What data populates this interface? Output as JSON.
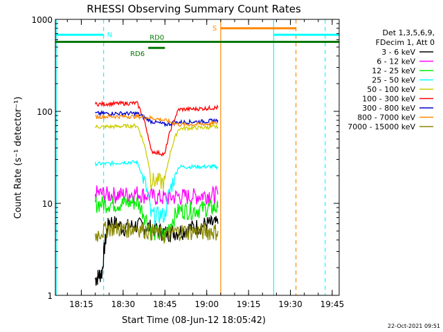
{
  "chart_data": {
    "type": "line",
    "title": "RHESSI Observing Summary Count Rates",
    "xlabel": "Start Time (08-Jun-12 18:05:42)",
    "ylabel": "Count Rate (s⁻¹ detector⁻¹)",
    "yscale": "log",
    "ylim": [
      1,
      1000
    ],
    "xlim": [
      "18:05:42",
      "19:47:30"
    ],
    "x_ticks": [
      "18:15",
      "18:30",
      "18:45",
      "19:00",
      "19:15",
      "19:30",
      "19:45"
    ],
    "y_ticks": [
      "1",
      "10",
      "100",
      "1000"
    ],
    "timestamp": "22-Oct-2021 09:51",
    "legend_header": [
      "Det 1,3,5,6,9,",
      "FDecim 1, Att 0"
    ],
    "legend_position": "right",
    "series": [
      {
        "name": "3 - 6 keV",
        "color": "#000000",
        "x": [
          "18:20:00",
          "18:22:30",
          "18:25:00",
          "18:30:00",
          "18:35:00",
          "18:40:00",
          "18:45:00",
          "18:50:00",
          "18:55:00",
          "19:00:00",
          "19:04:00"
        ],
        "values": [
          1.5,
          1.8,
          6.5,
          5.5,
          5.8,
          5.5,
          4.8,
          5.0,
          5.5,
          6.0,
          6.0
        ]
      },
      {
        "name": "6 - 12 keV",
        "color": "#ff00ff",
        "x": [
          "18:20:00",
          "18:25:00",
          "18:30:00",
          "18:35:00",
          "18:40:00",
          "18:45:00",
          "18:50:00",
          "18:55:00",
          "19:00:00",
          "19:04:00"
        ],
        "values": [
          13.0,
          12.5,
          12.5,
          13.0,
          12.0,
          11.5,
          12.0,
          12.0,
          12.5,
          12.5
        ]
      },
      {
        "name": "12 - 25 keV",
        "color": "#00ee00",
        "x": [
          "18:20:00",
          "18:25:00",
          "18:30:00",
          "18:35:00",
          "18:40:00",
          "18:45:00",
          "18:50:00",
          "18:55:00",
          "19:00:00",
          "19:04:00"
        ],
        "values": [
          10.0,
          10.0,
          10.0,
          10.5,
          5.0,
          4.5,
          8.5,
          8.5,
          9.0,
          9.0
        ]
      },
      {
        "name": "25 - 50 keV",
        "color": "#00ffff",
        "x": [
          "18:20:00",
          "18:25:00",
          "18:30:00",
          "18:35:00",
          "18:40:00",
          "18:45:00",
          "18:50:00",
          "18:55:00",
          "19:00:00",
          "19:04:00"
        ],
        "values": [
          27,
          27,
          28,
          28,
          7.5,
          7.5,
          25,
          25,
          25,
          25
        ]
      },
      {
        "name": "50 - 100 keV",
        "color": "#cccc00",
        "x": [
          "18:20:00",
          "18:25:00",
          "18:30:00",
          "18:35:00",
          "18:40:00",
          "18:45:00",
          "18:50:00",
          "18:55:00",
          "19:00:00",
          "19:04:00"
        ],
        "values": [
          68,
          68,
          69,
          70,
          18,
          17,
          65,
          66,
          67,
          68
        ]
      },
      {
        "name": "100 - 300 keV",
        "color": "#ff0000",
        "x": [
          "18:20:00",
          "18:25:00",
          "18:30:00",
          "18:35:00",
          "18:40:00",
          "18:45:00",
          "18:50:00",
          "18:55:00",
          "19:00:00",
          "19:04:00"
        ],
        "values": [
          120,
          121,
          122,
          123,
          37,
          34,
          105,
          106,
          108,
          110
        ]
      },
      {
        "name": "300 - 800 keV",
        "color": "#0000cc",
        "x": [
          "18:20:00",
          "18:25:00",
          "18:30:00",
          "18:35:00",
          "18:40:00",
          "18:45:00",
          "18:50:00",
          "18:55:00",
          "19:00:00",
          "19:04:00"
        ],
        "values": [
          95,
          95,
          95,
          95,
          78,
          72,
          76,
          77,
          78,
          80
        ]
      },
      {
        "name": "800 - 7000 keV",
        "color": "#ff8800",
        "x": [
          "18:20:00",
          "18:25:00",
          "18:30:00",
          "18:35:00",
          "18:40:00",
          "18:45:00",
          "18:50:00",
          "18:55:00",
          "19:00:00",
          "19:04:00"
        ],
        "values": [
          87,
          88,
          88,
          88,
          85,
          80,
          72,
          72,
          73,
          75
        ]
      },
      {
        "name": "7000 - 15000 keV",
        "color": "#888800",
        "x": [
          "18:20:00",
          "18:25:00",
          "18:30:00",
          "18:35:00",
          "18:40:00",
          "18:45:00",
          "18:50:00",
          "18:55:00",
          "19:00:00",
          "19:04:00"
        ],
        "values": [
          4.5,
          5.5,
          5.3,
          5.5,
          5.0,
          4.5,
          5.0,
          5.0,
          5.0,
          5.0
        ]
      }
    ],
    "flag_lines": [
      {
        "label": "N",
        "color": "#00ffff",
        "x_start": "18:05:42",
        "x_end": "18:23:00",
        "level": 680
      },
      {
        "label": "",
        "color": "#00ffff",
        "x_start": "19:24:00",
        "x_end": "19:47:30",
        "level": 680
      },
      {
        "label": "S",
        "color": "#ff8800",
        "x_start": "19:05:00",
        "x_end": "19:32:00",
        "level": 800
      },
      {
        "label": "RD0",
        "color": "#007700",
        "x_start": "18:05:42",
        "x_end": "19:47:30",
        "level": 570
      },
      {
        "label": "RD6",
        "color": "#007700",
        "x_start": "18:39:00",
        "x_end": "18:45:00",
        "level": 490
      }
    ],
    "vertical_markers": [
      {
        "color": "#00ffff",
        "style": "solid",
        "x": "18:06:00"
      },
      {
        "color": "#00ffff",
        "style": "dashed",
        "x": "18:23:00"
      },
      {
        "color": "#ff8800",
        "style": "solid",
        "x": "19:05:00"
      },
      {
        "color": "#00ffff",
        "style": "solid",
        "x": "19:24:00"
      },
      {
        "color": "#ff8800",
        "style": "dashed",
        "x": "19:32:00"
      },
      {
        "color": "#00ffff",
        "style": "dashed",
        "x": "19:42:30"
      }
    ]
  }
}
